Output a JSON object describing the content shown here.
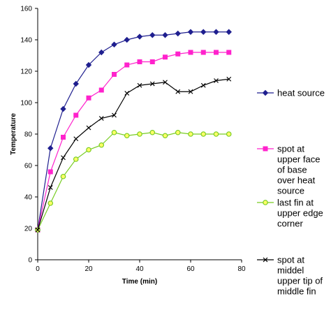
{
  "chart_data": {
    "type": "line",
    "title": "",
    "xlabel": "Time (min)",
    "ylabel": "Temperature",
    "xlim": [
      0,
      80
    ],
    "ylim": [
      0,
      160
    ],
    "xticks": [
      0,
      20,
      40,
      60,
      80
    ],
    "yticks": [
      0,
      20,
      40,
      60,
      80,
      100,
      120,
      140,
      160
    ],
    "grid": false,
    "legend_position": "right",
    "x": [
      0,
      5,
      10,
      15,
      20,
      25,
      30,
      35,
      40,
      45,
      50,
      55,
      60,
      65,
      70,
      75
    ],
    "series": [
      {
        "name": "heat source",
        "color": "#1f1f8f",
        "marker": "diamond",
        "values": [
          19,
          71,
          96,
          112,
          124,
          132,
          137,
          140,
          142,
          143,
          143,
          144,
          145,
          145,
          145,
          145
        ]
      },
      {
        "name": "spot at upper face of base over heat source",
        "legend_lines": [
          "spot at",
          "upper face",
          "of base",
          "over heat",
          "source"
        ],
        "color": "#ff22cc",
        "marker": "square",
        "values": [
          19,
          56,
          78,
          92,
          103,
          108,
          118,
          124,
          126,
          126,
          129,
          131,
          132,
          132,
          132,
          132
        ]
      },
      {
        "name": "last fin at upper edge corner",
        "legend_lines": [
          "last fin at",
          "upper edge",
          "corner"
        ],
        "color": "#77cc22",
        "marker": "circle",
        "values": [
          19,
          36,
          53,
          64,
          70,
          73,
          81,
          79,
          80,
          81,
          79,
          81,
          80,
          80,
          80,
          80
        ]
      },
      {
        "name": "spot at middel upper tip of middle fin",
        "legend_lines": [
          "spot at",
          "middel",
          "upper tip of",
          "middle fin"
        ],
        "color": "#000000",
        "marker": "x",
        "values": [
          19,
          46,
          65,
          77,
          84,
          90,
          92,
          106,
          111,
          112,
          113,
          107,
          107,
          111,
          114,
          115
        ]
      }
    ]
  }
}
